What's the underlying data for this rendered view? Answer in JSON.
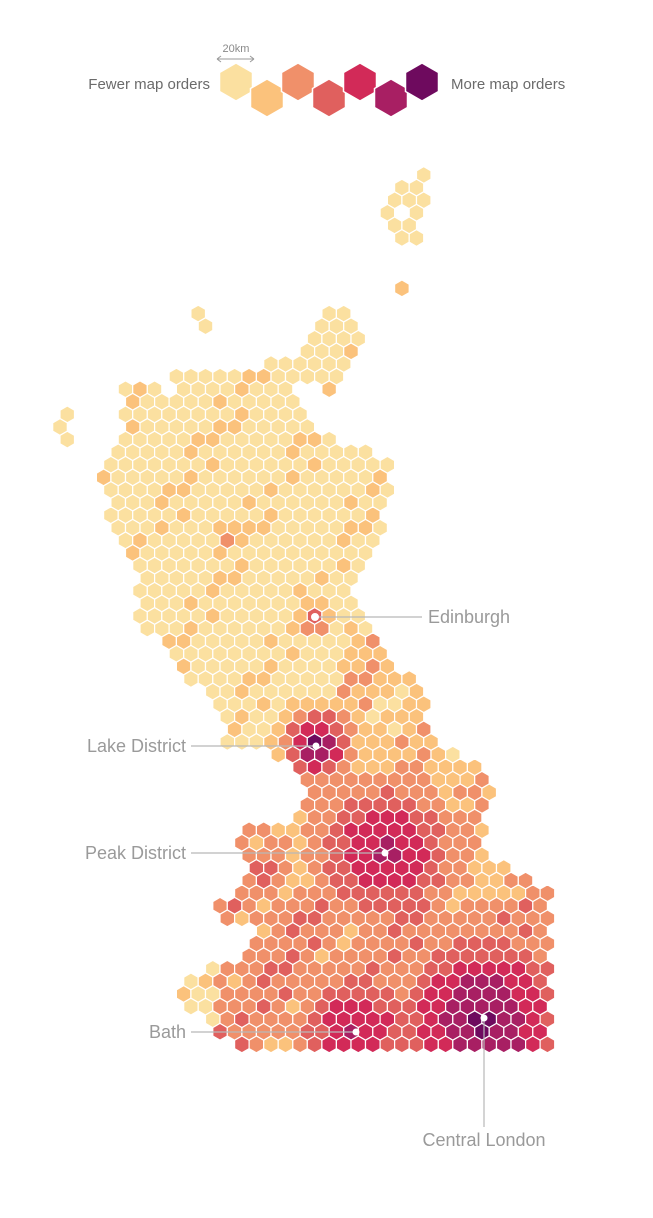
{
  "legend": {
    "scale_label": "20km",
    "fewer_label": "Fewer map orders",
    "more_label": "More map orders",
    "palette": [
      "#fbe0a0",
      "#fbc27c",
      "#f0906a",
      "#e0605e",
      "#d22a58",
      "#a81f63",
      "#6e0a5e"
    ]
  },
  "callouts": {
    "edinburgh": "Edinburgh",
    "lake_district": "Lake District",
    "peak_district": "Peak District",
    "bath": "Bath",
    "central_london": "Central London"
  }
}
